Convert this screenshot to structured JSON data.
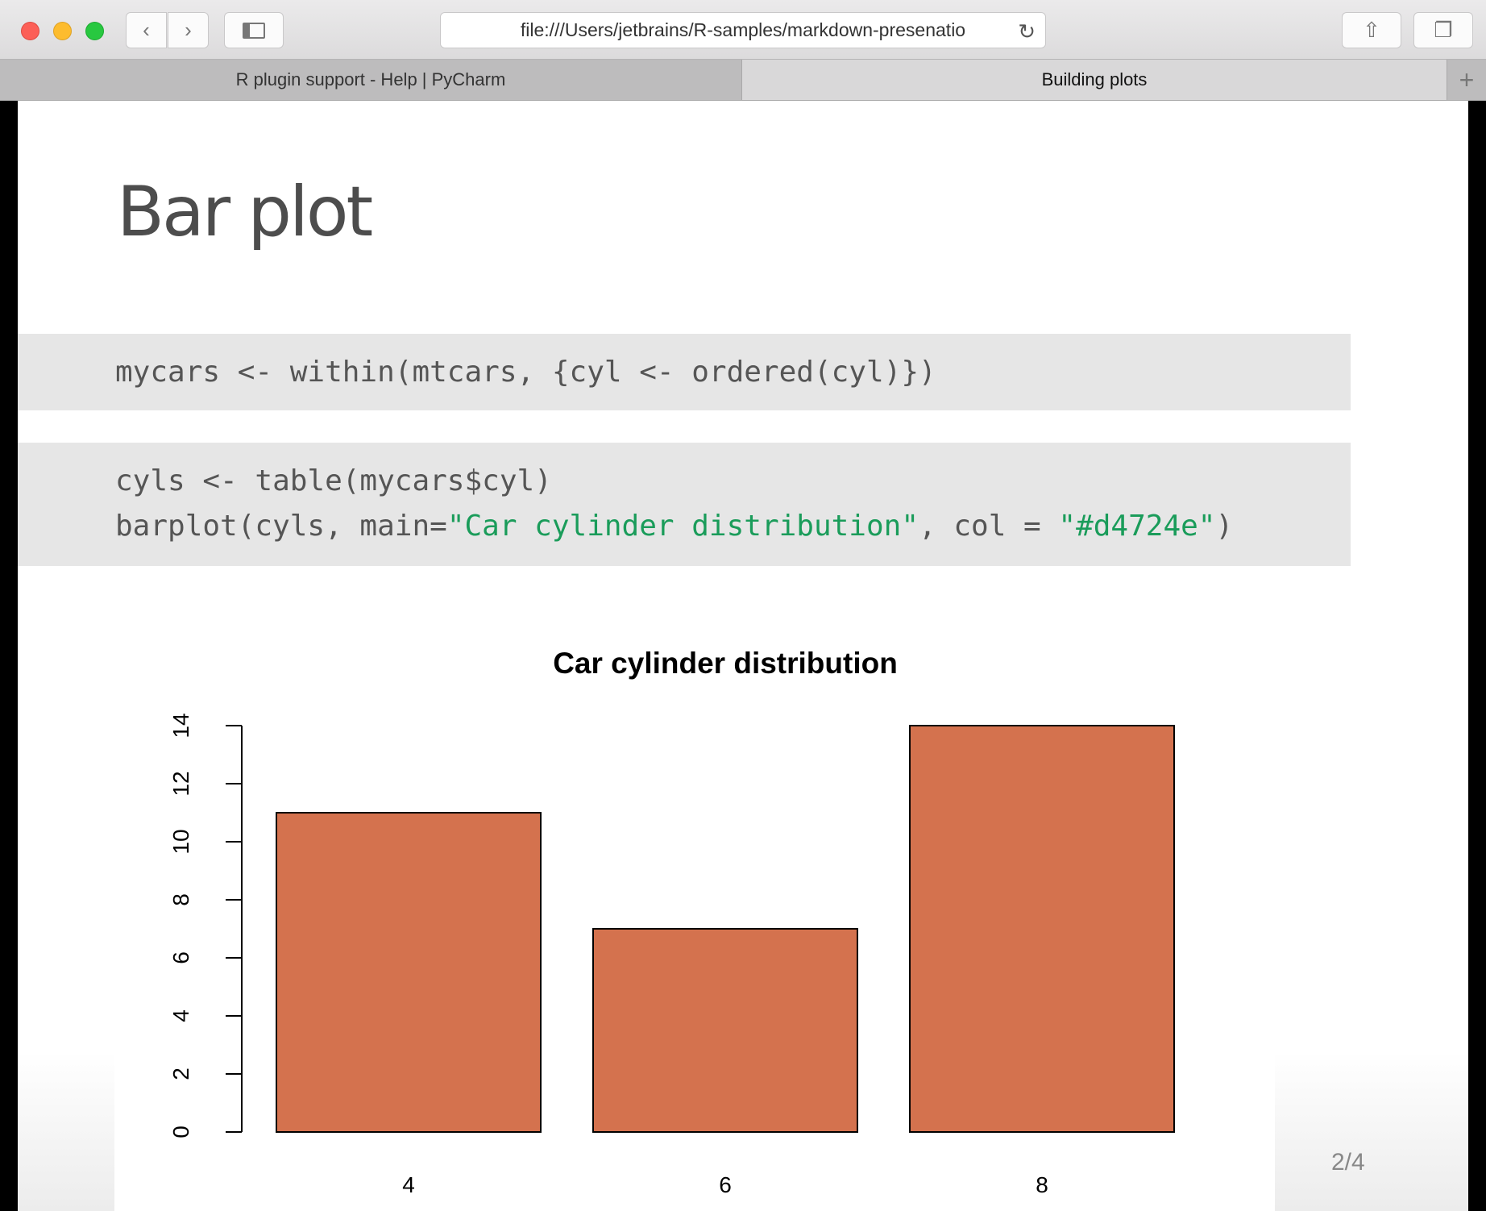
{
  "browser": {
    "url": "file:///Users/jetbrains/R-samples/markdown-presenatio",
    "tabs": [
      {
        "label": "R plugin support - Help | PyCharm",
        "active": false
      },
      {
        "label": "Building plots",
        "active": true
      }
    ],
    "new_tab": "+"
  },
  "slide": {
    "heading": "Bar plot",
    "code_block_1": [
      "mycars <- within(mtcars, {cyl <- ordered(cyl)})"
    ],
    "code_block_2": {
      "line1": "cyls <- table(mycars$cyl)",
      "line2_parts": [
        "barplot(cyls, main=",
        "\"Car cylinder distribution\"",
        ", col = ",
        "\"#d4724e\"",
        ")"
      ]
    },
    "page_number": "2/4"
  },
  "chart_data": {
    "type": "bar",
    "title": "Car cylinder distribution",
    "categories": [
      "4",
      "6",
      "8"
    ],
    "values": [
      11,
      7,
      14
    ],
    "ylim": [
      0,
      14
    ],
    "yticks": [
      0,
      2,
      4,
      6,
      8,
      10,
      12,
      14
    ],
    "bar_color": "#d4724e",
    "grid": false
  }
}
